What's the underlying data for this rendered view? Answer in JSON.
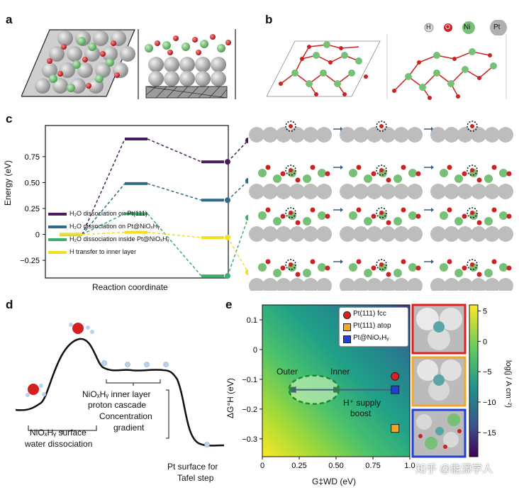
{
  "panels": {
    "a": {
      "letter": "a"
    },
    "b": {
      "letter": "b",
      "legend": [
        {
          "symbol": "H",
          "color": "#d9d9d9"
        },
        {
          "symbol": "O",
          "color": "#cc2222"
        },
        {
          "symbol": "Ni",
          "color": "#77c077"
        },
        {
          "symbol": "Pt",
          "color": "#b0b0b0"
        }
      ]
    },
    "c": {
      "letter": "c"
    },
    "d": {
      "letter": "d",
      "labels": {
        "surface": "NiOₓHᵧ surface",
        "surface2": "water dissociation",
        "inner1": "NiOₓHᵧ inner layer",
        "inner2": "proton cascade",
        "conc1": "Concentration",
        "conc2": "gradient",
        "pt1": "Pt surface for",
        "pt2": "Tafel step"
      }
    },
    "e": {
      "letter": "e",
      "labels": {
        "outer": "Outer",
        "inner": "Inner",
        "supply1": "H⁺ supply",
        "supply2": "boost"
      },
      "colorbar_label": "log(j / A cm⁻²)",
      "colorbar_ticks": [
        "5",
        "0",
        "−5",
        "−10",
        "−15"
      ]
    }
  },
  "chart_data": [
    {
      "type": "line",
      "title": "",
      "xlabel": "Reaction coordinate",
      "ylabel": "Energy (eV)",
      "ylim": [
        -0.42,
        1.05
      ],
      "yticks": [
        "0.75",
        "0.50",
        "0.25",
        "0",
        "−0.25"
      ],
      "ytick_values": [
        0.75,
        0.5,
        0.25,
        0,
        -0.25
      ],
      "series": [
        {
          "name": "H₂O dissociation on Pt(111)",
          "color": "#4b1a5c",
          "values": [
            0,
            0.92,
            0.7
          ]
        },
        {
          "name": "H₂O dissociation on Pt@NiOₓHᵧ",
          "color": "#2f6b8a",
          "values": [
            0,
            0.49,
            0.33
          ]
        },
        {
          "name": "H₂O dissociation inside Pt@NiOₓHᵧ",
          "color": "#3aae6e",
          "values": [
            0,
            0.2,
            -0.4
          ]
        },
        {
          "name": "H transfer to inner layer",
          "color": "#f2e01e",
          "values": [
            0,
            0.02,
            -0.03
          ]
        }
      ]
    },
    {
      "type": "scatter",
      "xlabel": "G‡WD (eV)",
      "ylabel": "ΔG°H (eV)",
      "xlim": [
        0,
        1.0
      ],
      "ylim": [
        -0.36,
        0.15
      ],
      "xticks": [
        "0",
        "0.25",
        "0.50",
        "0.75",
        "1.0"
      ],
      "xtick_values": [
        0,
        0.25,
        0.5,
        0.75,
        1.0
      ],
      "yticks": [
        "0.1",
        "0",
        "−0.1",
        "−0.2",
        "−0.3"
      ],
      "ytick_values": [
        0.1,
        0,
        -0.1,
        -0.2,
        -0.3
      ],
      "series": [
        {
          "name": "Pt(111) fcc",
          "color": "#e02020",
          "shape": "circle",
          "x": 0.9,
          "y": -0.09
        },
        {
          "name": "Pt(111) atop",
          "color": "#f5a623",
          "shape": "square",
          "x": 0.9,
          "y": -0.265
        },
        {
          "name": "Pt@NiOₓHᵧ",
          "color": "#1f3fd6",
          "shape": "square",
          "x": 0.9,
          "y": -0.135
        }
      ],
      "arrow": {
        "from": [
          0.88,
          -0.135
        ],
        "to": [
          0.2,
          -0.135
        ]
      },
      "region_points": [
        [
          0.2,
          -0.135
        ],
        [
          0.5,
          -0.135
        ]
      ]
    }
  ],
  "watermark": "知乎 @能源学人"
}
